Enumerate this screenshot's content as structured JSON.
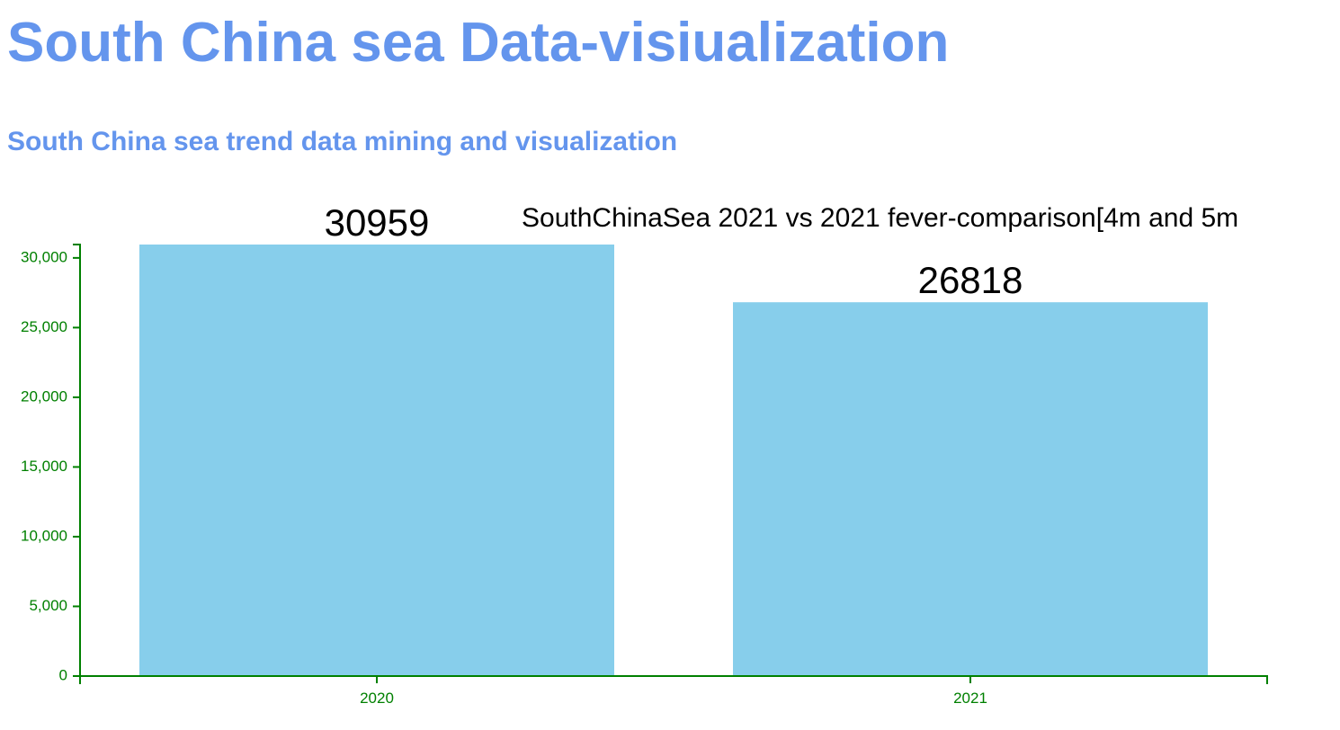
{
  "page": {
    "title": "South China sea Data-visiualization",
    "subtitle": "South China sea trend data mining and visualization",
    "title_color": "#6495ed"
  },
  "chart_data": {
    "type": "bar",
    "title": "SouthChinaSea 2021 vs 2021 fever-comparison[4m and 5m",
    "categories": [
      "2020",
      "2021"
    ],
    "values": [
      30959,
      26818
    ],
    "ylim": [
      0,
      30959
    ],
    "yticks": [
      0,
      5000,
      10000,
      15000,
      20000,
      25000,
      30000
    ],
    "ytick_labels": [
      "0",
      "5,000",
      "10,000",
      "15,000",
      "20,000",
      "25,000",
      "30,000"
    ],
    "grid": false,
    "bar_color": "#87ceeb",
    "axis_color": "#008000",
    "label_color": "#000000"
  }
}
